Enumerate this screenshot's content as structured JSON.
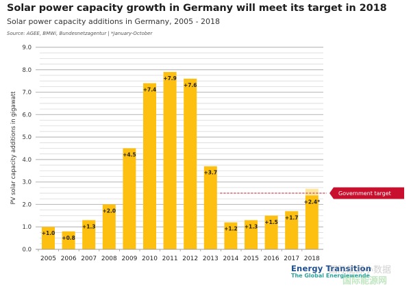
{
  "chart_data": {
    "type": "bar",
    "title": "Solar power capacity growth in Germany will meet its target in 2018",
    "subtitle": "Solar power capacity additions in Germany, 2005 - 2018",
    "source": "Source:  AGEE, BMWi, Bundesnetzagentur | *January-October",
    "xlabel": "",
    "ylabel": "PV solar capacity additions in gigawatt",
    "ylim": [
      0,
      9
    ],
    "yticks": [
      "0.0",
      "1.0",
      "2.0",
      "3.0",
      "4.0",
      "5.0",
      "6.0",
      "7.0",
      "8.0",
      "9.0"
    ],
    "grid": true,
    "categories": [
      "2005",
      "2006",
      "2007",
      "2008",
      "2009",
      "2010",
      "2011",
      "2012",
      "2013",
      "2014",
      "2015",
      "2016",
      "2017",
      "2018"
    ],
    "values": [
      1.0,
      0.8,
      1.3,
      2.0,
      4.5,
      7.4,
      7.9,
      7.6,
      3.7,
      1.2,
      1.3,
      1.5,
      1.7,
      2.4
    ],
    "data_labels": [
      "+1.0",
      "+0.8",
      "+1.3",
      "+2.0",
      "+4.5",
      "+7.4",
      "+7.9",
      "+7.6",
      "+3.7",
      "+1.2",
      "+1.3",
      "+1.5",
      "+1.7",
      "+2.4*"
    ],
    "projection": {
      "category": "2018",
      "value": 2.7
    },
    "target": {
      "value": 2.5,
      "from_category": "2014",
      "label": "Government target"
    },
    "colors": {
      "bar": "#FDC010",
      "projection": "#FCE6A0",
      "target": "#C8102E",
      "grid": "#d9d9d9",
      "grid_major": "#bdbdbd"
    }
  },
  "branding": {
    "logo_main": "Energy Transition",
    "logo_sub": "The Global Energiewende",
    "watermark_1": "国际能源小数据",
    "watermark_2": "国际能源网"
  }
}
